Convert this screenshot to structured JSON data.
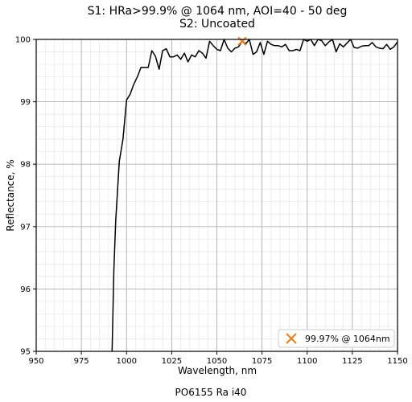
{
  "chart_data": {
    "type": "line",
    "title": "S1: HRa>99.9% @ 1064 nm, AOI=40 - 50 deg",
    "subtitle": "S2: Uncoated",
    "xlabel": "Wavelength, nm",
    "ylabel": "Reflectance, %",
    "xlim": [
      950,
      1150
    ],
    "ylim": [
      95,
      100
    ],
    "xticks": [
      950,
      975,
      1000,
      1025,
      1050,
      1075,
      1100,
      1125,
      1150
    ],
    "yticks": [
      95,
      96,
      97,
      98,
      99,
      100
    ],
    "grid": true,
    "legend_position": "lower-right",
    "series": [
      {
        "color": "#000000",
        "x": [
          992,
          993,
          994,
          996,
          998,
          1000,
          1002,
          1004,
          1006,
          1008,
          1010,
          1012,
          1014,
          1016,
          1018,
          1020,
          1022,
          1024,
          1026,
          1028,
          1030,
          1032,
          1034,
          1036,
          1038,
          1040,
          1042,
          1044,
          1046,
          1048,
          1050,
          1052,
          1054,
          1056,
          1058,
          1060,
          1062,
          1064,
          1066,
          1068,
          1070,
          1072,
          1074,
          1076,
          1078,
          1080,
          1082,
          1084,
          1086,
          1088,
          1090,
          1092,
          1094,
          1096,
          1098,
          1100,
          1102,
          1104,
          1106,
          1108,
          1110,
          1112,
          1114,
          1116,
          1118,
          1120,
          1122,
          1124,
          1126,
          1128,
          1130,
          1132,
          1134,
          1136,
          1138,
          1140,
          1142,
          1144,
          1146,
          1148,
          1150
        ],
        "y": [
          95.0,
          96.3,
          97.1,
          98.05,
          98.4,
          99.03,
          99.12,
          99.28,
          99.4,
          99.55,
          99.55,
          99.55,
          99.82,
          99.73,
          99.52,
          99.82,
          99.85,
          99.72,
          99.72,
          99.75,
          99.68,
          99.78,
          99.64,
          99.75,
          99.72,
          99.82,
          99.78,
          99.7,
          99.97,
          99.9,
          99.84,
          99.82,
          100.0,
          99.86,
          99.8,
          99.86,
          99.88,
          99.97,
          99.93,
          100.0,
          99.76,
          99.8,
          99.95,
          99.76,
          99.97,
          99.92,
          99.9,
          99.9,
          99.88,
          99.92,
          99.82,
          99.82,
          99.84,
          99.82,
          100.0,
          99.97,
          100.0,
          99.9,
          100.0,
          99.98,
          99.9,
          99.96,
          100.0,
          99.8,
          99.93,
          99.88,
          99.94,
          100.0,
          99.87,
          99.86,
          99.89,
          99.9,
          99.9,
          99.95,
          99.88,
          99.86,
          99.85,
          99.92,
          99.84,
          99.88,
          99.96
        ]
      }
    ],
    "marker": {
      "x": 1064,
      "y": 99.97,
      "color": "#f07f19",
      "label": "99.97% @ 1064nm"
    }
  },
  "footer": {
    "caption": "PO6155 Ra i40"
  }
}
